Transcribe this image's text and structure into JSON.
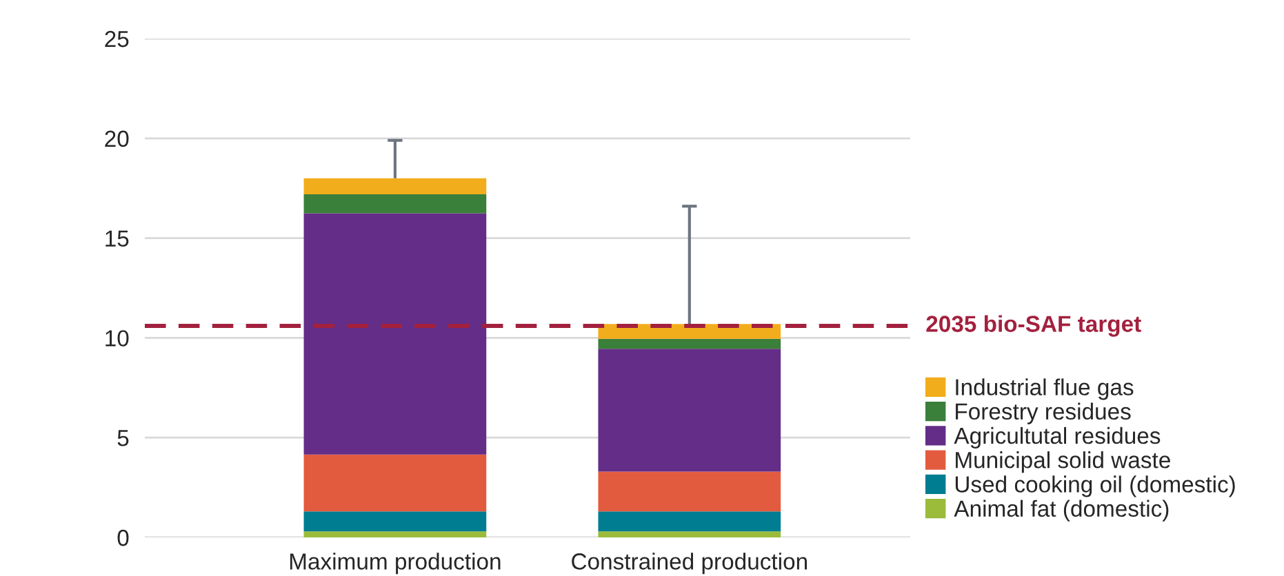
{
  "chart_data": {
    "type": "bar",
    "stacked": true,
    "categories": [
      "Maximum production",
      "Constrained production"
    ],
    "series": [
      {
        "name": "Animal fat (domestic)",
        "color": "#9bbb3b",
        "values": [
          0.3,
          0.3
        ]
      },
      {
        "name": "Used cooking oil (domestic)",
        "color": "#007d91",
        "values": [
          1.0,
          1.0
        ]
      },
      {
        "name": "Municipal solid waste",
        "color": "#e35b3f",
        "values": [
          2.85,
          2.0
        ]
      },
      {
        "name": "Agricultutal residues",
        "color": "#642d87",
        "values": [
          12.1,
          6.15
        ]
      },
      {
        "name": "Forestry residues",
        "color": "#3a7f3a",
        "values": [
          0.95,
          0.5
        ]
      },
      {
        "name": "Industrial flue gas",
        "color": "#f2ad1c",
        "values": [
          0.8,
          0.75
        ],
        "errors": [
          [
            18.0,
            19.9
          ],
          [
            10.7,
            16.6
          ]
        ]
      }
    ],
    "ylim": [
      0,
      25
    ],
    "yticks": [
      0,
      5,
      10,
      15,
      20,
      25
    ],
    "grid": "y",
    "legend": "right",
    "ref_lines": [
      {
        "axis": "y",
        "value": 10.6,
        "label": "2035 bio-SAF target",
        "color": "#a3213e",
        "line_style": "dashed"
      }
    ]
  }
}
